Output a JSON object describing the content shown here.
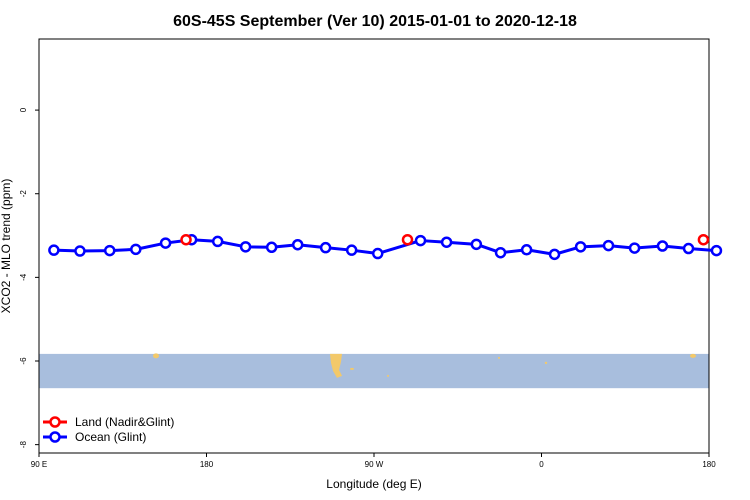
{
  "chart_data": {
    "type": "line",
    "title": "60S-45S September (Ver 10)   2015-01-01 to 2020-12-18",
    "xlabel": "Longitude (deg E)",
    "ylabel": "XCO2 - MLO trend (ppm)",
    "xlim": [
      90,
      450
    ],
    "ylim": [
      -8.2,
      1.7
    ],
    "x_ticks": [
      {
        "value": 90,
        "label": "90 E"
      },
      {
        "value": 180,
        "label": "180"
      },
      {
        "value": 270,
        "label": "90 W"
      },
      {
        "value": 360,
        "label": "0"
      },
      {
        "value": 450,
        "label": "180"
      }
    ],
    "y_ticks": [
      {
        "value": 0,
        "label": "0"
      },
      {
        "value": -2,
        "label": "-2"
      },
      {
        "value": -4,
        "label": "-4"
      },
      {
        "value": -6,
        "label": "-6"
      },
      {
        "value": -8,
        "label": "-8"
      }
    ],
    "grid": false,
    "legend_position": "bottom-left",
    "map_strip": {
      "y_range": [
        -6.65,
        -5.83
      ],
      "ocean_color": "#a8bedd",
      "land_color": "#f3c96a"
    },
    "series": [
      {
        "name": "Land (Nadir&Glint)",
        "color": "#ff0000",
        "x": [
          169,
          288,
          447
        ],
        "y": [
          -3.1,
          -3.1,
          -3.1
        ]
      },
      {
        "name": "Ocean (Glint)",
        "color": "#0000ff",
        "x": [
          98,
          112,
          128,
          142,
          158,
          172,
          186,
          201,
          215,
          229,
          244,
          258,
          272,
          295,
          309,
          325,
          338,
          352,
          367,
          381,
          396,
          410,
          425,
          439,
          454
        ],
        "y": [
          -3.35,
          -3.37,
          -3.36,
          -3.33,
          -3.18,
          -3.1,
          -3.14,
          -3.27,
          -3.28,
          -3.22,
          -3.29,
          -3.35,
          -3.43,
          -3.12,
          -3.16,
          -3.21,
          -3.41,
          -3.34,
          -3.45,
          -3.27,
          -3.24,
          -3.3,
          -3.25,
          -3.31,
          -3.36
        ]
      }
    ]
  }
}
